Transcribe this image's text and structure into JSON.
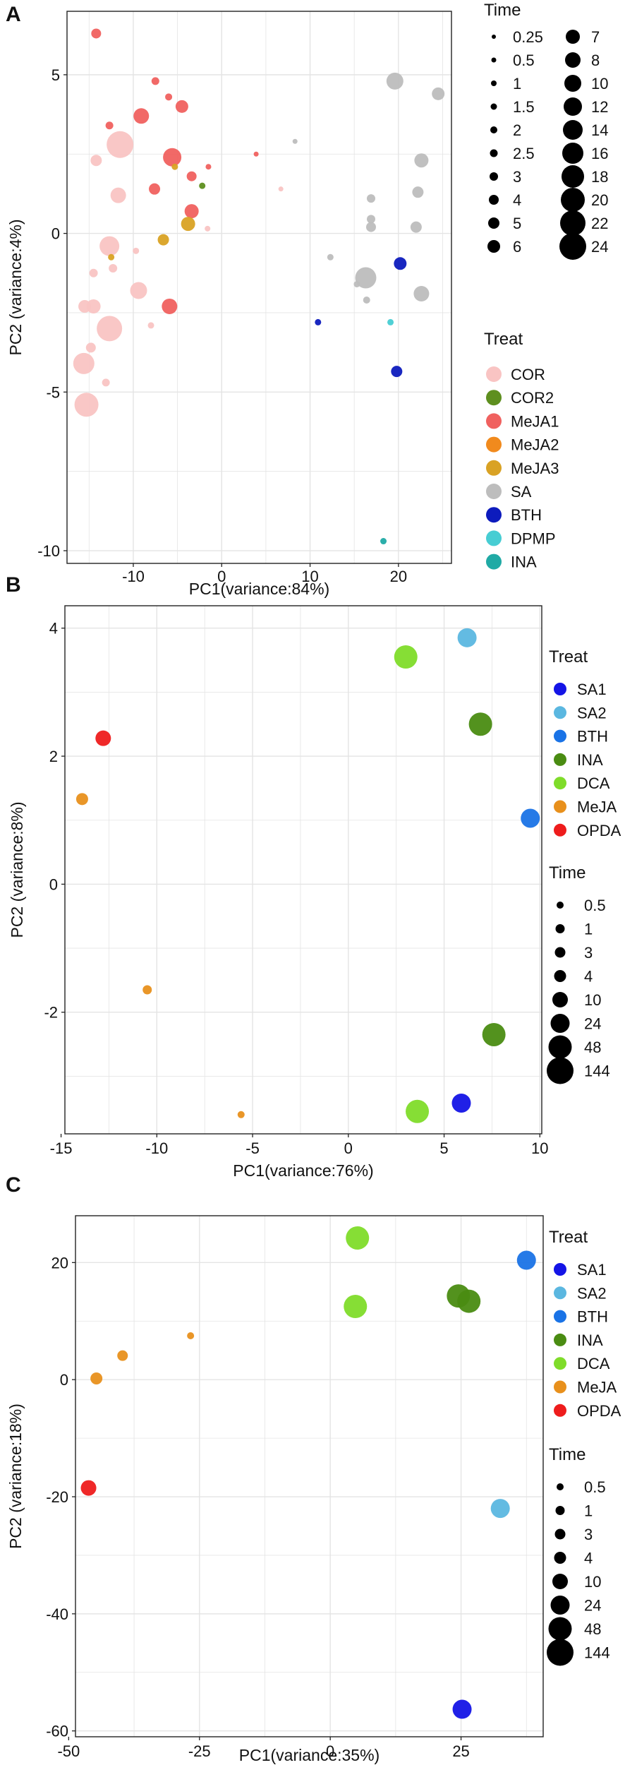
{
  "chart_data": [
    {
      "panel": "A",
      "type": "scatter",
      "xlabel": "PC1(variance:84%)",
      "ylabel": "PC2 (variance:4%)",
      "xlim": [
        -17.5,
        26
      ],
      "ylim": [
        -10.4,
        7
      ],
      "xticks": [
        -10,
        0,
        10,
        20
      ],
      "yticks": [
        -10,
        -5,
        0,
        5
      ],
      "grid": true,
      "size_legend": {
        "title": "Time",
        "values": [
          "0.25",
          "0.5",
          "1",
          "1.5",
          "2",
          "2.5",
          "3",
          "4",
          "5",
          "6",
          "7",
          "8",
          "10",
          "12",
          "14",
          "16",
          "18",
          "20",
          "22",
          "24"
        ]
      },
      "color_legend": {
        "title": "Treat",
        "entries": [
          {
            "name": "COR",
            "color": "#f9c4c3"
          },
          {
            "name": "COR2",
            "color": "#5e8f1f"
          },
          {
            "name": "MeJA1",
            "color": "#f0615f"
          },
          {
            "name": "MeJA2",
            "color": "#f18a1d"
          },
          {
            "name": "MeJA3",
            "color": "#d9a224"
          },
          {
            "name": "SA",
            "color": "#bdbdbd"
          },
          {
            "name": "BTH",
            "color": "#0d1bbd"
          },
          {
            "name": "DPMP",
            "color": "#47cdd3"
          },
          {
            "name": "INA",
            "color": "#20aaa5"
          }
        ]
      },
      "points": [
        {
          "x": -14.2,
          "y": 6.3,
          "treat": "MeJA1",
          "time": 4
        },
        {
          "x": -7.5,
          "y": 4.8,
          "treat": "MeJA1",
          "time": 2.5
        },
        {
          "x": -6,
          "y": 4.3,
          "treat": "MeJA1",
          "time": 2
        },
        {
          "x": -9.1,
          "y": 3.7,
          "treat": "MeJA1",
          "time": 8
        },
        {
          "x": -4.5,
          "y": 4,
          "treat": "MeJA1",
          "time": 6
        },
        {
          "x": -12.7,
          "y": 3.4,
          "treat": "MeJA1",
          "time": 2.5
        },
        {
          "x": -11.5,
          "y": 2.8,
          "treat": "COR",
          "time": 24
        },
        {
          "x": -14.2,
          "y": 2.3,
          "treat": "COR",
          "time": 5
        },
        {
          "x": -5.6,
          "y": 2.4,
          "treat": "MeJA1",
          "time": 12
        },
        {
          "x": -1.5,
          "y": 2.1,
          "treat": "MeJA1",
          "time": 1
        },
        {
          "x": -3.4,
          "y": 1.8,
          "treat": "MeJA1",
          "time": 4
        },
        {
          "x": 3.9,
          "y": 2.5,
          "treat": "MeJA1",
          "time": 0.5
        },
        {
          "x": -5.3,
          "y": 2.1,
          "treat": "MeJA3",
          "time": 1.5
        },
        {
          "x": -2.2,
          "y": 1.5,
          "treat": "COR2",
          "time": 1.5
        },
        {
          "x": -7.6,
          "y": 1.4,
          "treat": "MeJA1",
          "time": 5
        },
        {
          "x": -11.7,
          "y": 1.2,
          "treat": "COR",
          "time": 8
        },
        {
          "x": 6.7,
          "y": 1.4,
          "treat": "COR",
          "time": 0.5
        },
        {
          "x": -3.4,
          "y": 0.7,
          "treat": "MeJA1",
          "time": 7
        },
        {
          "x": -3.8,
          "y": 0.3,
          "treat": "MeJA3",
          "time": 7
        },
        {
          "x": -1.6,
          "y": 0.15,
          "treat": "COR",
          "time": 1
        },
        {
          "x": -6.6,
          "y": -0.2,
          "treat": "MeJA3",
          "time": 5
        },
        {
          "x": -12.7,
          "y": -0.4,
          "treat": "COR",
          "time": 14
        },
        {
          "x": -12.5,
          "y": -0.75,
          "treat": "MeJA3",
          "time": 1.5
        },
        {
          "x": -9.7,
          "y": -0.55,
          "treat": "COR",
          "time": 1.5
        },
        {
          "x": -12.3,
          "y": -1.1,
          "treat": "COR",
          "time": 3
        },
        {
          "x": -14.5,
          "y": -1.25,
          "treat": "COR",
          "time": 3
        },
        {
          "x": -9.4,
          "y": -1.8,
          "treat": "COR",
          "time": 10
        },
        {
          "x": -15.5,
          "y": -2.3,
          "treat": "COR",
          "time": 6
        },
        {
          "x": -14.5,
          "y": -2.3,
          "treat": "COR",
          "time": 7
        },
        {
          "x": -5.9,
          "y": -2.3,
          "treat": "MeJA1",
          "time": 8
        },
        {
          "x": -12.7,
          "y": -3,
          "treat": "COR",
          "time": 22
        },
        {
          "x": -8,
          "y": -2.9,
          "treat": "COR",
          "time": 1.5
        },
        {
          "x": -14.8,
          "y": -3.6,
          "treat": "COR",
          "time": 4
        },
        {
          "x": -15.6,
          "y": -4.1,
          "treat": "COR",
          "time": 16
        },
        {
          "x": -13.1,
          "y": -4.7,
          "treat": "COR",
          "time": 2.5
        },
        {
          "x": -15.3,
          "y": -5.4,
          "treat": "COR",
          "time": 20
        },
        {
          "x": 8.3,
          "y": 2.9,
          "treat": "SA",
          "time": 0.5
        },
        {
          "x": 19.6,
          "y": 4.8,
          "treat": "SA",
          "time": 10
        },
        {
          "x": 24.5,
          "y": 4.4,
          "treat": "SA",
          "time": 6
        },
        {
          "x": 22.6,
          "y": 2.3,
          "treat": "SA",
          "time": 7
        },
        {
          "x": 22.2,
          "y": 1.3,
          "treat": "SA",
          "time": 5
        },
        {
          "x": 16.9,
          "y": 1.1,
          "treat": "SA",
          "time": 3
        },
        {
          "x": 16.9,
          "y": 0.45,
          "treat": "SA",
          "time": 3
        },
        {
          "x": 22,
          "y": 0.2,
          "treat": "SA",
          "time": 5
        },
        {
          "x": 16.9,
          "y": 0.2,
          "treat": "SA",
          "time": 4
        },
        {
          "x": 12.3,
          "y": -0.75,
          "treat": "SA",
          "time": 1.5
        },
        {
          "x": 16.3,
          "y": -1.4,
          "treat": "SA",
          "time": 16
        },
        {
          "x": 15.3,
          "y": -1.6,
          "treat": "SA",
          "time": 1.5
        },
        {
          "x": 22.6,
          "y": -1.9,
          "treat": "SA",
          "time": 8
        },
        {
          "x": 16.4,
          "y": -2.1,
          "treat": "SA",
          "time": 2
        },
        {
          "x": 20.2,
          "y": -0.95,
          "treat": "BTH",
          "time": 6
        },
        {
          "x": 10.9,
          "y": -2.8,
          "treat": "BTH",
          "time": 1.5
        },
        {
          "x": 19.8,
          "y": -4.35,
          "treat": "BTH",
          "time": 5
        },
        {
          "x": 19.1,
          "y": -2.8,
          "treat": "DPMP",
          "time": 1.5
        },
        {
          "x": 18.3,
          "y": -9.7,
          "treat": "INA",
          "time": 1.5
        }
      ]
    },
    {
      "panel": "B",
      "type": "scatter",
      "xlabel": "PC1(variance:76%)",
      "ylabel": "PC2 (variance:8%)",
      "xlim": [
        -14.8,
        10.1
      ],
      "ylim": [
        -3.9,
        4.35
      ],
      "xticks": [
        -15,
        -10,
        -5,
        0,
        5,
        10
      ],
      "yticks": [
        -2,
        0,
        2,
        4
      ],
      "grid": true,
      "color_legend": {
        "title": "Treat",
        "entries": [
          {
            "name": "SA1",
            "color": "#1414e6"
          },
          {
            "name": "SA2",
            "color": "#5bb7e0"
          },
          {
            "name": "BTH",
            "color": "#1a73e6"
          },
          {
            "name": "INA",
            "color": "#4a8c12"
          },
          {
            "name": "DCA",
            "color": "#7fdc2a"
          },
          {
            "name": "MeJA",
            "color": "#e8901c"
          },
          {
            "name": "OPDA",
            "color": "#ee1c1c"
          }
        ]
      },
      "size_legend": {
        "title": "Time",
        "values": [
          "0.5",
          "1",
          "3",
          "4",
          "10",
          "24",
          "48",
          "144"
        ]
      },
      "points": [
        {
          "x": 6.2,
          "y": 3.85,
          "treat": "SA2",
          "time": 24
        },
        {
          "x": 3,
          "y": 3.55,
          "treat": "DCA",
          "time": 48
        },
        {
          "x": 6.9,
          "y": 2.5,
          "treat": "INA",
          "time": 48
        },
        {
          "x": -12.8,
          "y": 2.28,
          "treat": "OPDA",
          "time": 10
        },
        {
          "x": -13.9,
          "y": 1.33,
          "treat": "MeJA",
          "time": 4
        },
        {
          "x": 9.5,
          "y": 1.03,
          "treat": "BTH",
          "time": 24
        },
        {
          "x": -10.5,
          "y": -1.65,
          "treat": "MeJA",
          "time": 1
        },
        {
          "x": 7.6,
          "y": -2.35,
          "treat": "INA",
          "time": 48
        },
        {
          "x": 5.9,
          "y": -3.42,
          "treat": "SA1",
          "time": 24
        },
        {
          "x": 3.6,
          "y": -3.55,
          "treat": "DCA",
          "time": 48
        },
        {
          "x": -5.6,
          "y": -3.6,
          "treat": "MeJA",
          "time": 0.5
        }
      ]
    },
    {
      "panel": "C",
      "type": "scatter",
      "xlabel": "PC1(variance:35%)",
      "ylabel": "PC2 (variance:18%)",
      "xlim": [
        -48.7,
        40.7
      ],
      "ylim": [
        -61,
        28
      ],
      "xticks": [
        -50,
        -25,
        0,
        25
      ],
      "yticks": [
        -60,
        -40,
        -20,
        0,
        20
      ],
      "grid": true,
      "color_legend": {
        "title": "Treat",
        "entries": [
          {
            "name": "SA1",
            "color": "#1414e6"
          },
          {
            "name": "SA2",
            "color": "#5bb7e0"
          },
          {
            "name": "BTH",
            "color": "#1a73e6"
          },
          {
            "name": "INA",
            "color": "#4a8c12"
          },
          {
            "name": "DCA",
            "color": "#7fdc2a"
          },
          {
            "name": "MeJA",
            "color": "#e8901c"
          },
          {
            "name": "OPDA",
            "color": "#ee1c1c"
          }
        ]
      },
      "size_legend": {
        "title": "Time",
        "values": [
          "0.5",
          "1",
          "3",
          "4",
          "10",
          "24",
          "48",
          "144"
        ]
      },
      "points": [
        {
          "x": 5.2,
          "y": 24.2,
          "treat": "DCA",
          "time": 48
        },
        {
          "x": 37.5,
          "y": 20.4,
          "treat": "BTH",
          "time": 24
        },
        {
          "x": 24.5,
          "y": 14.3,
          "treat": "INA",
          "time": 48
        },
        {
          "x": 26.5,
          "y": 13.4,
          "treat": "INA",
          "time": 48
        },
        {
          "x": 4.8,
          "y": 12.5,
          "treat": "DCA",
          "time": 48
        },
        {
          "x": -26.7,
          "y": 7.5,
          "treat": "MeJA",
          "time": 0.5
        },
        {
          "x": -39.7,
          "y": 4.1,
          "treat": "MeJA",
          "time": 3
        },
        {
          "x": -44.7,
          "y": 0.2,
          "treat": "MeJA",
          "time": 4
        },
        {
          "x": -46.2,
          "y": -18.5,
          "treat": "OPDA",
          "time": 10
        },
        {
          "x": 32.5,
          "y": -22,
          "treat": "SA2",
          "time": 24
        },
        {
          "x": 25.2,
          "y": -56.3,
          "treat": "SA1",
          "time": 24
        }
      ]
    }
  ]
}
